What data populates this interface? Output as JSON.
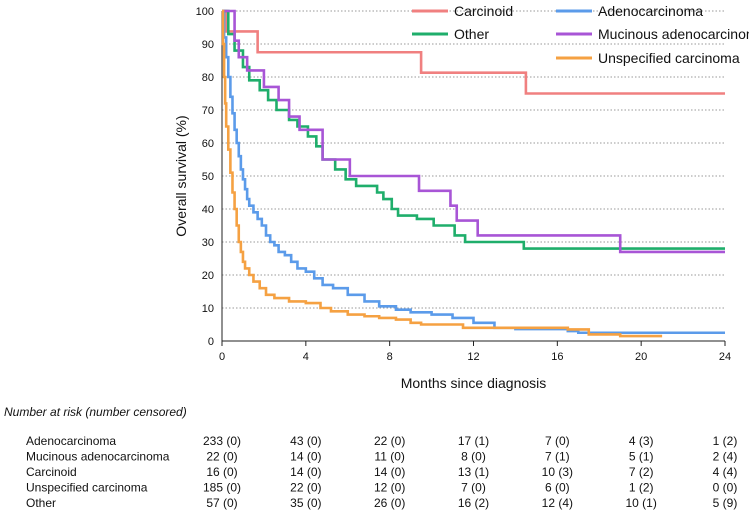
{
  "chart_data": {
    "type": "line",
    "title": "",
    "xlabel": "Months since diagnosis",
    "ylabel": "Overall survival  (%)",
    "xlim": [
      0,
      24
    ],
    "ylim": [
      0,
      100
    ],
    "x_ticks": [
      0,
      4,
      8,
      12,
      16,
      20,
      24
    ],
    "y_ticks": [
      0,
      10,
      20,
      30,
      40,
      50,
      60,
      70,
      80,
      90,
      100
    ],
    "grid": "horizontal-dotted",
    "legend_position": "top-right",
    "series": [
      {
        "name": "Carcinoid",
        "color": "#f08080",
        "points": [
          [
            0,
            100
          ],
          [
            0.2,
            93.8
          ],
          [
            1.7,
            87.5
          ],
          [
            9.5,
            81.3
          ],
          [
            14.5,
            75
          ],
          [
            24,
            75
          ]
        ]
      },
      {
        "name": "Adenocarcinoma",
        "color": "#5b9bea",
        "points": [
          [
            0,
            100
          ],
          [
            0.1,
            92
          ],
          [
            0.2,
            86
          ],
          [
            0.3,
            80
          ],
          [
            0.4,
            74
          ],
          [
            0.5,
            69
          ],
          [
            0.6,
            64
          ],
          [
            0.7,
            60
          ],
          [
            0.8,
            56
          ],
          [
            0.9,
            52
          ],
          [
            1.0,
            49
          ],
          [
            1.1,
            46
          ],
          [
            1.2,
            43
          ],
          [
            1.3,
            41
          ],
          [
            1.5,
            39
          ],
          [
            1.7,
            37
          ],
          [
            1.9,
            35
          ],
          [
            2.1,
            32
          ],
          [
            2.3,
            30
          ],
          [
            2.5,
            29
          ],
          [
            2.7,
            27
          ],
          [
            3.0,
            26
          ],
          [
            3.3,
            24
          ],
          [
            3.6,
            22
          ],
          [
            4.0,
            21
          ],
          [
            4.4,
            19
          ],
          [
            4.8,
            17
          ],
          [
            5.3,
            16
          ],
          [
            6.0,
            14
          ],
          [
            6.8,
            12
          ],
          [
            7.5,
            10.5
          ],
          [
            8.3,
            9.5
          ],
          [
            9.0,
            8.7
          ],
          [
            10.0,
            8
          ],
          [
            11.0,
            7
          ],
          [
            12.0,
            5.5
          ],
          [
            13.0,
            4
          ],
          [
            14.0,
            3.6
          ],
          [
            16.5,
            3
          ],
          [
            17.0,
            2.5
          ],
          [
            24,
            2.5
          ]
        ]
      },
      {
        "name": "Other",
        "color": "#1fae6b",
        "points": [
          [
            0,
            100
          ],
          [
            0.3,
            93
          ],
          [
            0.6,
            88
          ],
          [
            1.0,
            83
          ],
          [
            1.3,
            79
          ],
          [
            1.8,
            76
          ],
          [
            2.2,
            73
          ],
          [
            2.6,
            70
          ],
          [
            3.2,
            67
          ],
          [
            3.6,
            65
          ],
          [
            4.1,
            62
          ],
          [
            4.5,
            59
          ],
          [
            4.8,
            55
          ],
          [
            5.4,
            52
          ],
          [
            5.9,
            49
          ],
          [
            6.4,
            47
          ],
          [
            7.4,
            45
          ],
          [
            7.7,
            43
          ],
          [
            8.1,
            40
          ],
          [
            8.4,
            38
          ],
          [
            9.3,
            37
          ],
          [
            10.1,
            35
          ],
          [
            11.1,
            32
          ],
          [
            11.6,
            30
          ],
          [
            14.4,
            28
          ],
          [
            24,
            28
          ]
        ]
      },
      {
        "name": "Mucinous adenocarcinoma",
        "color": "#a855d6",
        "points": [
          [
            0,
            100
          ],
          [
            0.6,
            91
          ],
          [
            0.8,
            86
          ],
          [
            1.2,
            82
          ],
          [
            2.0,
            77
          ],
          [
            2.7,
            73
          ],
          [
            3.2,
            68
          ],
          [
            3.7,
            64
          ],
          [
            4.8,
            55
          ],
          [
            6.1,
            50
          ],
          [
            9.4,
            45.5
          ],
          [
            10.9,
            41
          ],
          [
            11.2,
            36.5
          ],
          [
            12.2,
            32
          ],
          [
            19,
            27
          ],
          [
            24,
            27
          ]
        ]
      },
      {
        "name": "Unspecified carcinoma",
        "color": "#f5a142",
        "points": [
          [
            0,
            100
          ],
          [
            0.05,
            90
          ],
          [
            0.1,
            80
          ],
          [
            0.15,
            72
          ],
          [
            0.2,
            65
          ],
          [
            0.3,
            58
          ],
          [
            0.4,
            51
          ],
          [
            0.5,
            45
          ],
          [
            0.6,
            40
          ],
          [
            0.7,
            35
          ],
          [
            0.8,
            30
          ],
          [
            0.9,
            27
          ],
          [
            1.0,
            24
          ],
          [
            1.1,
            22
          ],
          [
            1.3,
            20
          ],
          [
            1.5,
            18
          ],
          [
            1.8,
            16
          ],
          [
            2.1,
            14
          ],
          [
            2.5,
            13
          ],
          [
            3.2,
            12
          ],
          [
            4.0,
            11.5
          ],
          [
            4.7,
            10
          ],
          [
            5.2,
            9
          ],
          [
            6.0,
            8
          ],
          [
            6.8,
            7.5
          ],
          [
            7.5,
            7
          ],
          [
            8.3,
            6.5
          ],
          [
            9.0,
            5.5
          ],
          [
            9.5,
            5
          ],
          [
            11.5,
            4
          ],
          [
            16.5,
            3.5
          ],
          [
            17.5,
            2
          ],
          [
            19.0,
            1.5
          ],
          [
            21,
            1.5
          ]
        ]
      }
    ]
  },
  "risk_table": {
    "title": "Number at risk (number censored)",
    "rows": [
      {
        "label": "Adenocarcinoma",
        "values": [
          "233 (0)",
          "43 (0)",
          "22 (0)",
          "17 (1)",
          "7 (0)",
          "4 (3)",
          "1 (2)"
        ]
      },
      {
        "label": "Mucinous adenocarcinoma",
        "values": [
          "22  (0)",
          "14 (0)",
          "11 (0)",
          "8 (0)",
          "7 (1)",
          "5 (1)",
          "2 (4)"
        ]
      },
      {
        "label": "Carcinoid",
        "values": [
          "16  (0)",
          "14 (0)",
          "14 (0)",
          "13 (1)",
          "10 (3)",
          "7 (2)",
          "4 (4)"
        ]
      },
      {
        "label": "Unspecified carcinoma",
        "values": [
          "185 (0)",
          "22 (0)",
          "12 (0)",
          "7 (0)",
          "6 (0)",
          "1 (2)",
          "0 (0)"
        ]
      },
      {
        "label": "Other",
        "values": [
          "57  (0)",
          "35 (0)",
          "26 (0)",
          "16 (2)",
          "12 (4)",
          "10 (1)",
          "5 (9)"
        ]
      }
    ]
  }
}
